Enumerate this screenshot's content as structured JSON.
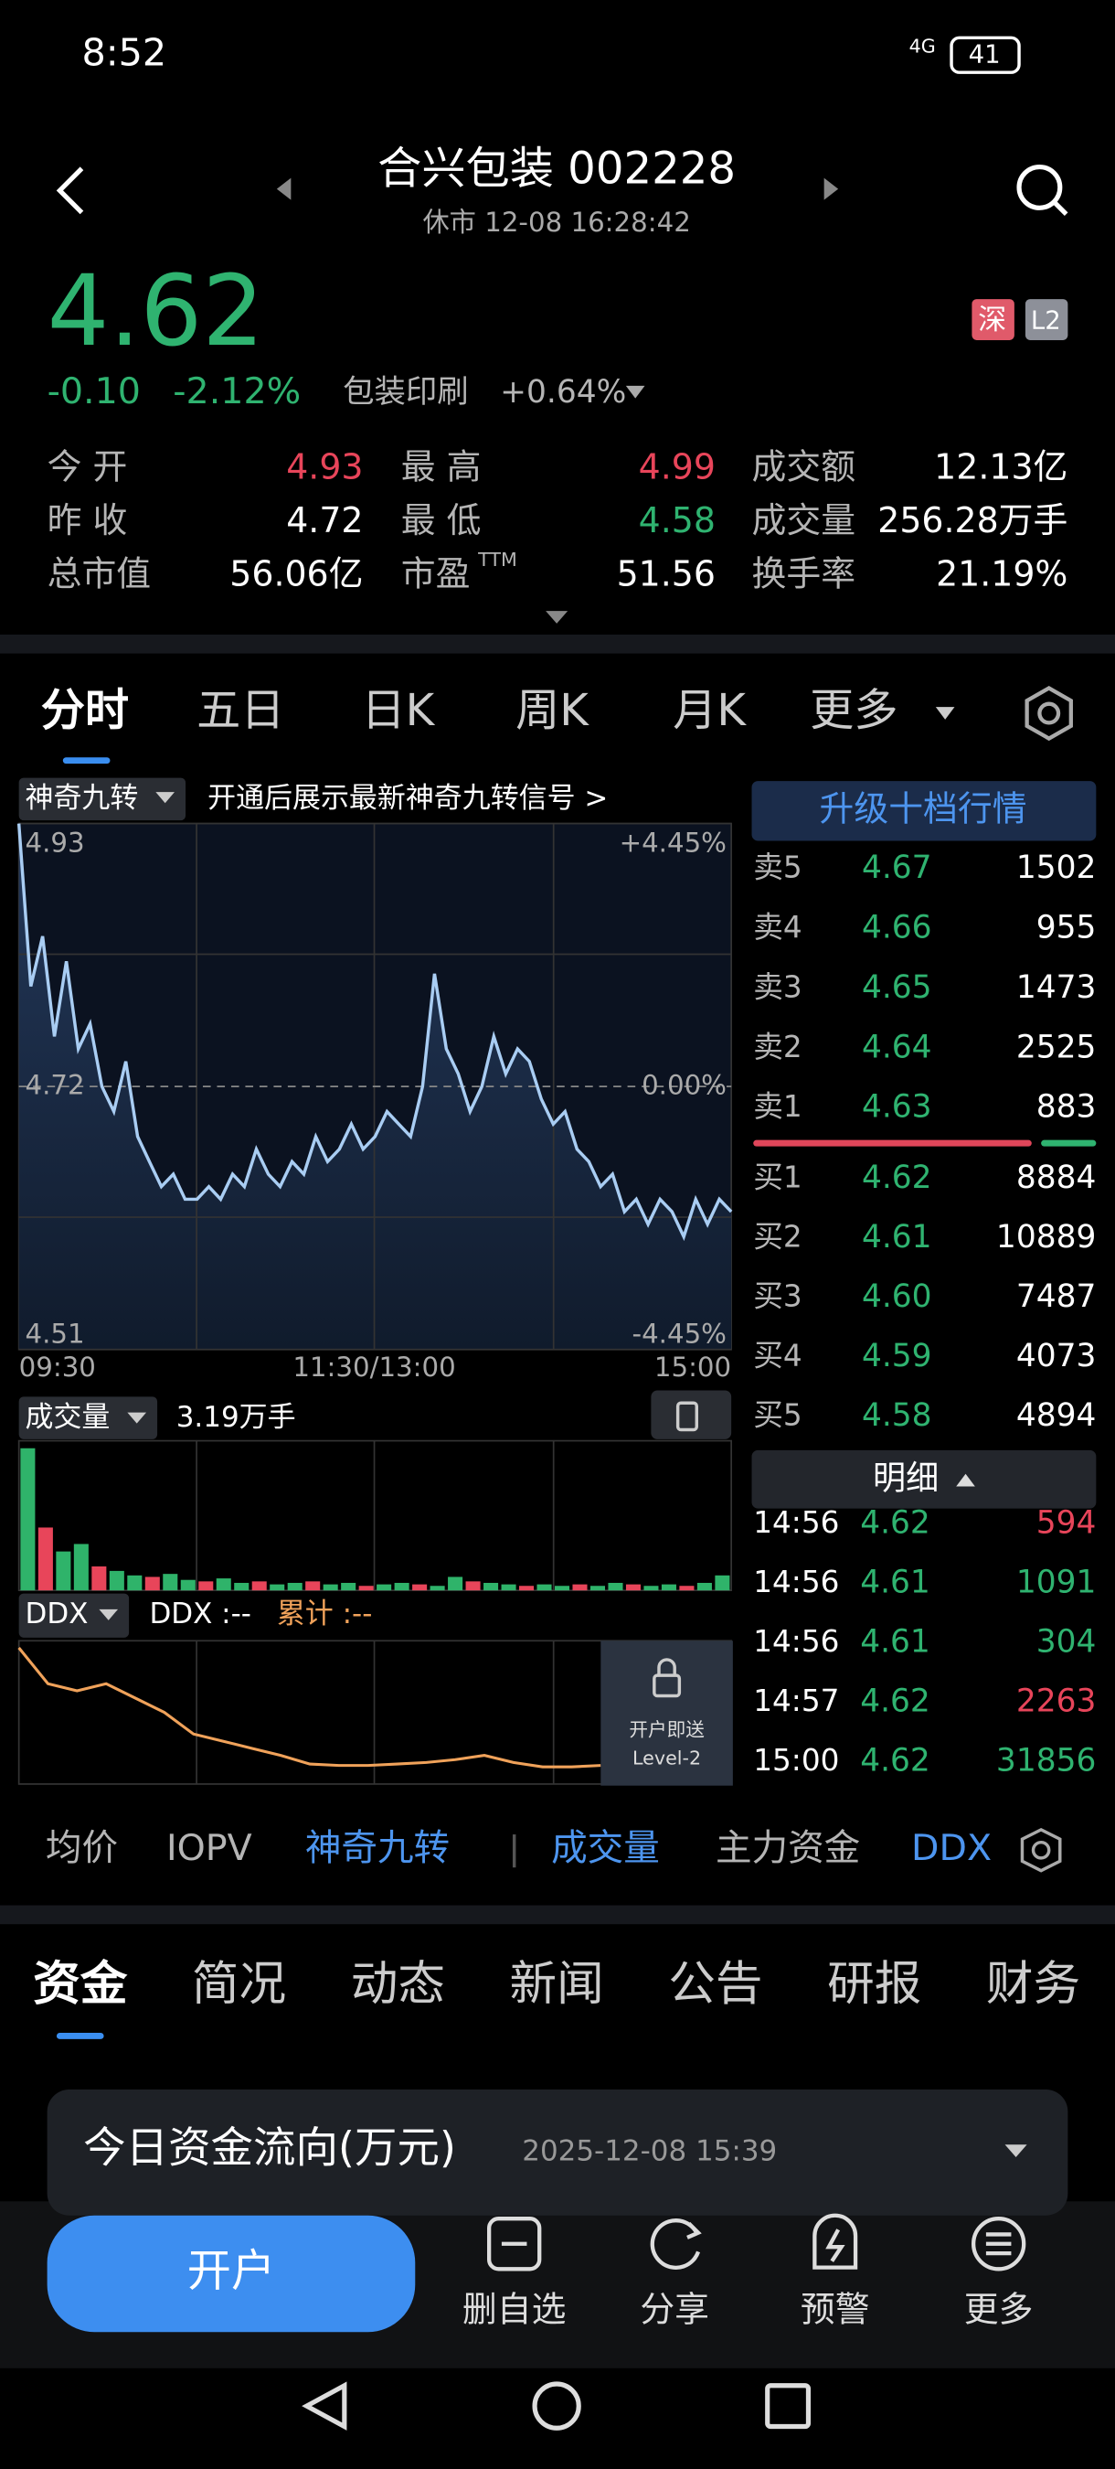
{
  "status_bar": {
    "time": "8:52",
    "network": "4G",
    "battery": "41"
  },
  "header": {
    "title": "合兴包装 002228",
    "subtitle": "休市 12-08 16:28:42"
  },
  "quote": {
    "price": "4.62",
    "change": "-0.10",
    "change_pct": "-2.12%",
    "sector": "包装印刷",
    "sector_change": "+0.64%",
    "badges": [
      "深",
      "L2"
    ]
  },
  "stats": [
    [
      {
        "label": "今 开",
        "value": "4.93"
      },
      {
        "label": "最 高",
        "value": "4.99"
      },
      {
        "label": "成交额",
        "value": "12.13亿"
      }
    ],
    [
      {
        "label": "昨 收",
        "value": "4.72"
      },
      {
        "label": "最 低",
        "value": "4.58"
      },
      {
        "label": "成交量",
        "value": "256.28万手"
      }
    ],
    [
      {
        "label": "总市值",
        "value": "56.06亿"
      },
      {
        "label": "市盈",
        "sup": "TTM",
        "value": "51.56"
      },
      {
        "label": "换手率",
        "value": "21.19%"
      }
    ]
  ],
  "period_tabs": [
    "分时",
    "五日",
    "日K",
    "周K",
    "月K",
    "更多"
  ],
  "signal": {
    "name": "神奇九转",
    "promo": "开通后展示最新神奇九转信号 >"
  },
  "chart_data": [
    {
      "type": "line",
      "color": "#a9cdf3",
      "ylim": [
        4.51,
        4.93
      ],
      "yticks": [
        4.93,
        4.72,
        4.51
      ],
      "pct_ticks": [
        "+4.45%",
        "0.00%",
        "-4.45%"
      ],
      "x_labels": [
        "09:30",
        "11:30/13:00",
        "15:00"
      ],
      "values": [
        4.93,
        4.8,
        4.84,
        4.76,
        4.82,
        4.75,
        4.77,
        4.72,
        4.7,
        4.74,
        4.68,
        4.66,
        4.64,
        4.65,
        4.63,
        4.63,
        4.64,
        4.63,
        4.65,
        4.64,
        4.67,
        4.65,
        4.64,
        4.66,
        4.65,
        4.68,
        4.66,
        4.67,
        4.69,
        4.67,
        4.68,
        4.7,
        4.69,
        4.68,
        4.72,
        4.81,
        4.75,
        4.73,
        4.7,
        4.72,
        4.76,
        4.73,
        4.75,
        4.74,
        4.71,
        4.69,
        4.7,
        4.67,
        4.66,
        4.64,
        4.65,
        4.62,
        4.63,
        4.61,
        4.63,
        4.62,
        4.6,
        4.63,
        4.61,
        4.63,
        4.62
      ]
    },
    {
      "type": "bar",
      "name": "成交量",
      "value_label": "3.19万手",
      "color": "#2fb36a",
      "ylim": [
        0,
        10
      ],
      "values": [
        9.5,
        4.2,
        2.6,
        3.1,
        1.6,
        1.3,
        1.0,
        0.9,
        1.1,
        0.7,
        0.6,
        0.8,
        0.5,
        0.6,
        0.4,
        0.5,
        0.6,
        0.4,
        0.5,
        0.3,
        0.4,
        0.5,
        0.4,
        0.3,
        0.9,
        0.6,
        0.5,
        0.4,
        0.3,
        0.4,
        0.3,
        0.4,
        0.3,
        0.5,
        0.4,
        0.3,
        0.4,
        0.3,
        0.5,
        1.0
      ]
    },
    {
      "type": "line",
      "color": "#f0a25a",
      "ylim": [
        -10,
        0
      ],
      "values": [
        -0.5,
        -3,
        -3.5,
        -3,
        -4,
        -5,
        -6.5,
        -7,
        -7.5,
        -8,
        -8.6,
        -8.7,
        -8.7,
        -8.6,
        -8.5,
        -8.3,
        -8,
        -8.5,
        -8.8,
        -8.8,
        -8.7
      ]
    }
  ],
  "order_book": {
    "upgrade": "升级十档行情",
    "asks": [
      [
        "卖5",
        "4.67",
        "1502"
      ],
      [
        "卖4",
        "4.66",
        "955"
      ],
      [
        "卖3",
        "4.65",
        "1473"
      ],
      [
        "卖2",
        "4.64",
        "2525"
      ],
      [
        "卖1",
        "4.63",
        "883"
      ]
    ],
    "bids": [
      [
        "买1",
        "4.62",
        "8884"
      ],
      [
        "买2",
        "4.61",
        "10889"
      ],
      [
        "买3",
        "4.60",
        "7487"
      ],
      [
        "买4",
        "4.59",
        "4073"
      ],
      [
        "买5",
        "4.58",
        "4894"
      ]
    ]
  },
  "trades": {
    "title": "明细",
    "rows": [
      [
        "14:56",
        "4.62",
        "594"
      ],
      [
        "14:56",
        "4.61",
        "1091"
      ],
      [
        "14:56",
        "4.61",
        "304"
      ],
      [
        "14:57",
        "4.62",
        "2263"
      ],
      [
        "15:00",
        "4.62",
        "31856"
      ]
    ]
  },
  "ddx": {
    "name": "DDX",
    "value": "DDX :--",
    "cumulative": "累计 :--",
    "lock": "开户即送",
    "level": "Level-2"
  },
  "indicator_tabs": [
    "均价",
    "IOPV",
    "神奇九转",
    "成交量",
    "主力资金",
    "DDX"
  ],
  "section_tabs": [
    "资金",
    "简况",
    "动态",
    "新闻",
    "公告",
    "研报",
    "财务"
  ],
  "fund_flow": {
    "title": "今日资金流向(万元)",
    "time": "2025-12-08 15:39"
  },
  "bottom_bar": {
    "primary": "开户",
    "actions": [
      "删自选",
      "分享",
      "预警",
      "更多"
    ]
  }
}
